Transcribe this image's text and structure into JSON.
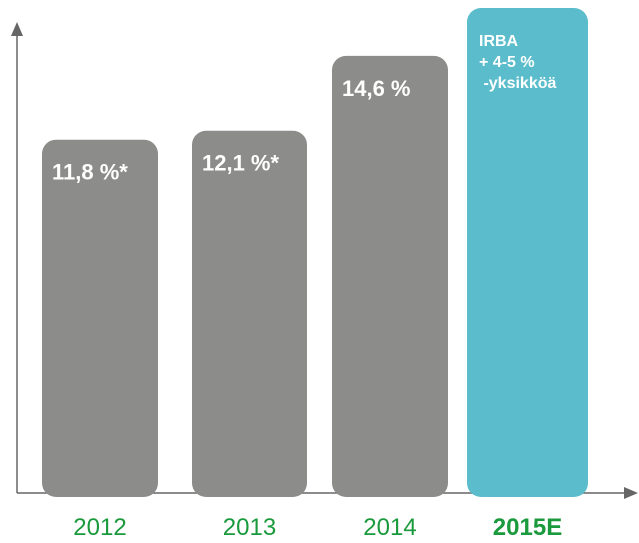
{
  "chart_data": {
    "type": "bar",
    "categories": [
      "2012",
      "2013",
      "2014",
      "2015E"
    ],
    "values": [
      11.8,
      12.1,
      14.6,
      16.2
    ],
    "value_labels": [
      "11,8 %*",
      "12,1 %*",
      "14,6 %",
      null
    ],
    "colors": [
      "#8c8d8a",
      "#8c8d8a",
      "#8c8d8a",
      "#5bbdcb"
    ],
    "annotation": [
      "IRBA",
      "+ 4-5 %",
      " -yksikköä"
    ],
    "ylim": [
      0,
      16.2
    ]
  }
}
